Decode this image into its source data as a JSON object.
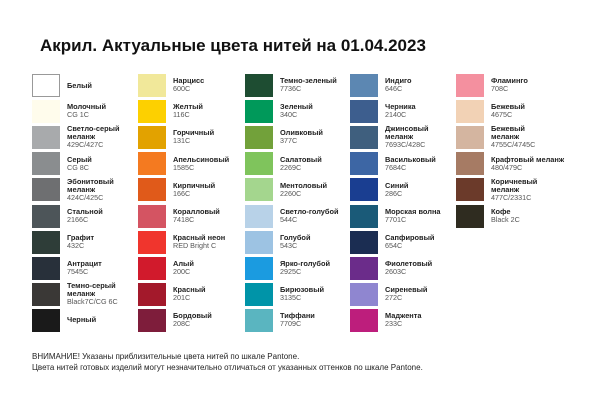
{
  "header": {
    "title": "Акрил. Актуальные цвета нитей на 01.04.2023"
  },
  "columns": [
    {
      "items": [
        {
          "name": [
            "Белый"
          ],
          "color": "#ffffff"
        },
        {
          "name": [
            "Молочный"
          ],
          "code": "CG 1C",
          "color": "#fffcec"
        },
        {
          "name": [
            "Светло-серый",
            "меланж"
          ],
          "code": "429C/427C",
          "color": "#a8aaac"
        },
        {
          "name": [
            "Серый"
          ],
          "code": "CG 8C",
          "color": "#8a8d8f"
        },
        {
          "name": [
            "Эбонитовый",
            "меланж"
          ],
          "code": "424C/425C",
          "color": "#6e6f71"
        },
        {
          "name": [
            "Стальной"
          ],
          "code": "2166C",
          "color": "#4d5559"
        },
        {
          "name": [
            "Графит"
          ],
          "code": "432C",
          "color": "#2e3d38"
        },
        {
          "name": [
            "Антрацит"
          ],
          "code": "7545C",
          "color": "#28303a"
        },
        {
          "name": [
            "Темно-серый",
            "меланж"
          ],
          "code": "Black7C/CG 6C",
          "color": "#3a3836"
        },
        {
          "name": [
            "Черный"
          ],
          "color": "#1a1a1a"
        }
      ]
    },
    {
      "items": [
        {
          "name": [
            "Нарцисс"
          ],
          "code": "600C",
          "color": "#f1e89a"
        },
        {
          "name": [
            "Желтый"
          ],
          "code": "116C",
          "color": "#fdd000"
        },
        {
          "name": [
            "Горчичный"
          ],
          "code": "131C",
          "color": "#e2a200"
        },
        {
          "name": [
            "Апельсиновый"
          ],
          "code": "1585C",
          "color": "#f47a20"
        },
        {
          "name": [
            "Кирпичный"
          ],
          "code": "166C",
          "color": "#e05a1a"
        },
        {
          "name": [
            "Коралловый"
          ],
          "code": "7418C",
          "color": "#d45462"
        },
        {
          "name": [
            "Красный неон"
          ],
          "code": "RED Bright C",
          "color": "#f0352d"
        },
        {
          "name": [
            "Алый"
          ],
          "code": "200C",
          "color": "#d11a2c"
        },
        {
          "name": [
            "Красный"
          ],
          "code": "201C",
          "color": "#a3192b"
        },
        {
          "name": [
            "Бордовый"
          ],
          "code": "208C",
          "color": "#7e1d3b"
        }
      ]
    },
    {
      "items": [
        {
          "name": [
            "Темно-зеленый"
          ],
          "code": "7736C",
          "color": "#1e4d32"
        },
        {
          "name": [
            "Зеленый"
          ],
          "code": "340C",
          "color": "#00995a"
        },
        {
          "name": [
            "Оливковый"
          ],
          "code": "377C",
          "color": "#72a13a"
        },
        {
          "name": [
            "Салатовый"
          ],
          "code": "2269C",
          "color": "#7fc45c"
        },
        {
          "name": [
            "Ментоловый"
          ],
          "code": "2260C",
          "color": "#a4d68e"
        },
        {
          "name": [
            "Светло-голубой"
          ],
          "code": "544C",
          "color": "#b8d2e8"
        },
        {
          "name": [
            "Голубой"
          ],
          "code": "543C",
          "color": "#9dc3e3"
        },
        {
          "name": [
            "Ярко-голубой"
          ],
          "code": "2925C",
          "color": "#1b9be0"
        },
        {
          "name": [
            "Бирюзовый"
          ],
          "code": "3135C",
          "color": "#0094a8"
        },
        {
          "name": [
            "Тиффани"
          ],
          "code": "7709C",
          "color": "#5ab5c0"
        }
      ]
    },
    {
      "items": [
        {
          "name": [
            "Индиго"
          ],
          "code": "646C",
          "color": "#5c87b2"
        },
        {
          "name": [
            "Черника"
          ],
          "code": "2140C",
          "color": "#3d5e8e"
        },
        {
          "name": [
            "Джинсовый",
            "меланж"
          ],
          "code": "7693C/428C",
          "color": "#3f5f7e"
        },
        {
          "name": [
            "Васильковый"
          ],
          "code": "7684C",
          "color": "#3d66a4"
        },
        {
          "name": [
            "Синий"
          ],
          "code": "286C",
          "color": "#1a3e91"
        },
        {
          "name": [
            "Морская волна"
          ],
          "code": "7701C",
          "color": "#1a5a78"
        },
        {
          "name": [
            "Сапфировый"
          ],
          "code": "654C",
          "color": "#1b2d52"
        },
        {
          "name": [
            "Фиолетовый"
          ],
          "code": "2603C",
          "color": "#6b2c8a"
        },
        {
          "name": [
            "Сиреневый"
          ],
          "code": "272C",
          "color": "#8f86d0"
        },
        {
          "name": [
            "Маджента"
          ],
          "code": "233C",
          "color": "#bd1e7c"
        }
      ]
    },
    {
      "items": [
        {
          "name": [
            "Фламинго"
          ],
          "code": "708C",
          "color": "#f4909f"
        },
        {
          "name": [
            "Бежевый"
          ],
          "code": "4675C",
          "color": "#f2d2b5"
        },
        {
          "name": [
            "Бежевый",
            "меланж"
          ],
          "code": "4755C/4745C",
          "color": "#d4b5a0"
        },
        {
          "name": [
            "Крафтовый меланж"
          ],
          "code": "480/479C",
          "color": "#a67b64"
        },
        {
          "name": [
            "Коричневый",
            "меланж"
          ],
          "code": "477C/2331C",
          "color": "#6b3a2a"
        },
        {
          "name": [
            "Кофе"
          ],
          "code": "Black 2C",
          "color": "#2f2c20"
        }
      ]
    }
  ],
  "notes": [
    "ВНИМАНИЕ! Указаны приблизительные цвета нитей по шкале Pantone.",
    "Цвета нитей готовых изделий могут незначительно отличаться от указанных оттенков по шкале Pantone."
  ]
}
